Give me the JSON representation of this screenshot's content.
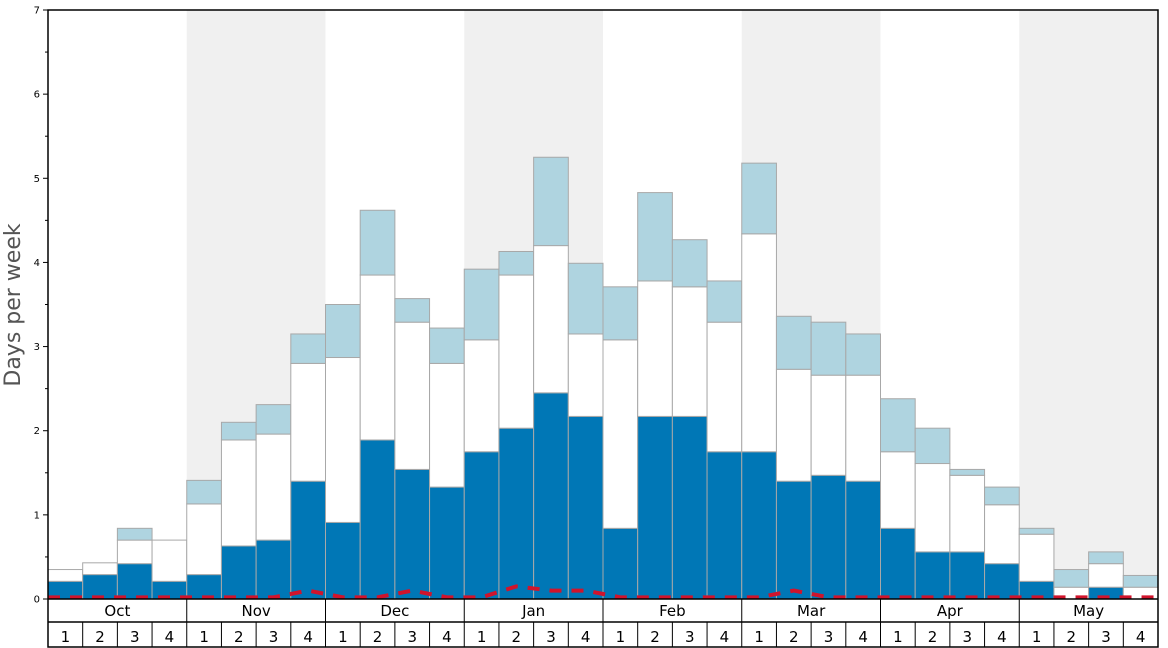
{
  "chart_data": {
    "type": "bar",
    "ylabel": "Days per week",
    "ylim": [
      0,
      7
    ],
    "yticks": [
      0,
      1,
      2,
      3,
      4,
      5,
      6,
      7
    ],
    "months": [
      "Oct",
      "Nov",
      "Dec",
      "Jan",
      "Feb",
      "Mar",
      "Apr",
      "May"
    ],
    "weeks": [
      "1",
      "2",
      "3",
      "4"
    ],
    "colors": {
      "bottom": "#0077b6",
      "middle": "#ffffff",
      "top": "#afd4e0",
      "line": "#d0142c",
      "band": "#f0f0f0",
      "bar_edge": "#a8a8a8"
    },
    "series": [
      {
        "values": [
          0.21,
          0.29,
          0.42,
          0.21,
          0.29,
          0.63,
          0.7,
          1.4,
          0.91,
          1.89,
          1.54,
          1.33,
          1.75,
          2.03,
          2.45,
          2.17,
          0.84,
          2.17,
          2.17,
          1.75,
          1.75,
          1.4,
          1.47,
          1.4,
          0.84,
          0.56,
          0.56,
          0.42,
          0.21,
          0.0,
          0.14,
          0.0
        ]
      },
      {
        "values": [
          0.14,
          0.14,
          0.28,
          0.49,
          0.84,
          1.26,
          1.26,
          1.4,
          1.96,
          1.96,
          1.75,
          1.47,
          1.33,
          1.82,
          1.75,
          0.98,
          2.24,
          1.61,
          1.54,
          1.54,
          2.59,
          1.33,
          1.19,
          1.26,
          0.91,
          1.05,
          0.91,
          0.7,
          0.56,
          0.14,
          0.28,
          0.14
        ]
      },
      {
        "values": [
          0.0,
          0.0,
          0.14,
          0.0,
          0.28,
          0.21,
          0.35,
          0.35,
          0.63,
          0.77,
          0.28,
          0.42,
          0.84,
          0.28,
          1.05,
          0.84,
          0.63,
          1.05,
          0.56,
          0.49,
          0.84,
          0.63,
          0.63,
          0.49,
          0.63,
          0.42,
          0.07,
          0.21,
          0.07,
          0.21,
          0.14,
          0.14
        ]
      },
      {
        "values": [
          0.02,
          0.02,
          0.02,
          0.02,
          0.02,
          0.02,
          0.02,
          0.1,
          0.02,
          0.02,
          0.1,
          0.02,
          0.02,
          0.15,
          0.1,
          0.1,
          0.02,
          0.02,
          0.02,
          0.02,
          0.02,
          0.1,
          0.02,
          0.02,
          0.02,
          0.02,
          0.02,
          0.02,
          0.02,
          0.02,
          0.02,
          0.02
        ]
      }
    ]
  }
}
